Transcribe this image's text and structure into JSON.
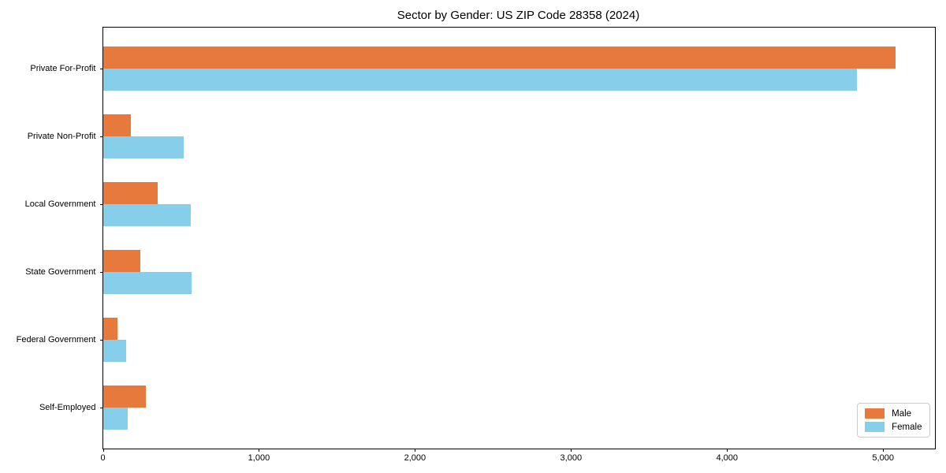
{
  "title": "Sector by Gender: US ZIP Code 28358 (2024)",
  "chart_data": {
    "type": "bar",
    "orientation": "horizontal",
    "title": "Sector by Gender: US ZIP Code 28358 (2024)",
    "categories": [
      "Private For-Profit",
      "Private Non-Profit",
      "Local Government",
      "State Government",
      "Federal Government",
      "Self-Employed"
    ],
    "series": [
      {
        "name": "Male",
        "color": "#e8793d",
        "values": [
          5080,
          180,
          350,
          240,
          95,
          275
        ]
      },
      {
        "name": "Female",
        "color": "#87ceeb",
        "values": [
          4830,
          520,
          565,
          570,
          150,
          160
        ]
      }
    ],
    "xlabel": "",
    "ylabel": "",
    "xlim": [
      0,
      5330
    ],
    "x_ticks": [
      0,
      1000,
      2000,
      3000,
      4000,
      5000
    ],
    "x_tick_labels": [
      "0",
      "1,000",
      "2,000",
      "3,000",
      "4,000",
      "5,000"
    ],
    "grid": false,
    "legend_position": "lower right"
  }
}
